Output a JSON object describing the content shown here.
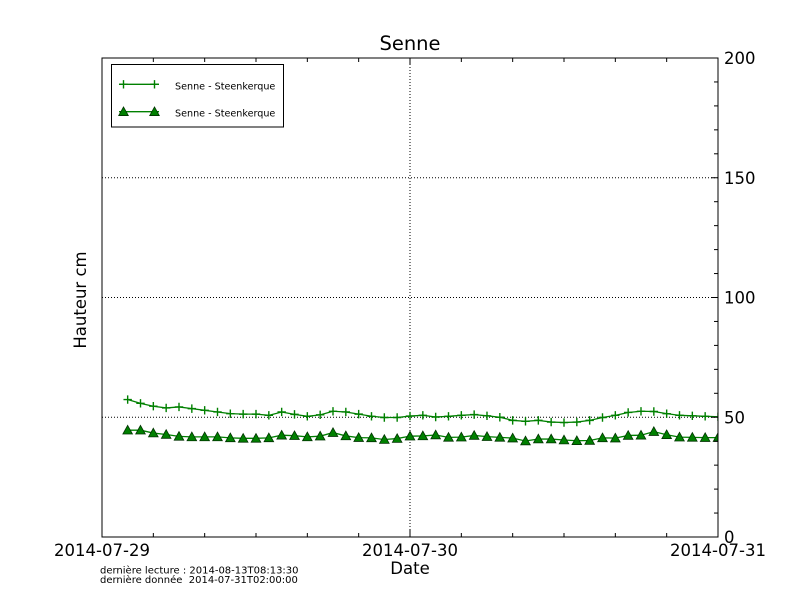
{
  "title": "Senne",
  "xlabel": "Date",
  "ylabel": "Hauteur cm",
  "footer": {
    "line1": "dernière lecture : 2014-08-13T08:13:30",
    "line2": "dernière donnée  2014-07-31T02:00:00"
  },
  "colors": {
    "line": "#008000",
    "triangle_fill": "#008000",
    "triangle_edge": "#003300",
    "grid": "#000000",
    "frame": "#000000"
  },
  "legend": {
    "entries": [
      {
        "label": "Senne - Steenkerque",
        "marker": "plus"
      },
      {
        "label": "Senne - Steenkerque",
        "marker": "triangle"
      }
    ]
  },
  "chart_data": {
    "type": "line",
    "title": "Senne",
    "xlabel": "Date",
    "ylabel": "Hauteur cm",
    "xlim_hours": [
      0,
      48
    ],
    "ylim": [
      0,
      200
    ],
    "x_tick_positions_hours": [
      0,
      24,
      48
    ],
    "x_tick_labels": [
      "2014-07-29",
      "2014-07-30",
      "2014-07-31"
    ],
    "y_tick_positions": [
      0,
      50,
      100,
      150,
      200
    ],
    "y_tick_labels": [
      "0",
      "50",
      "100",
      "150",
      "200"
    ],
    "x_minor_step_hours": 4,
    "y_minor_step": 10,
    "grid_y_values": [
      50,
      100,
      150
    ],
    "grid_x_values_hours": [
      24
    ],
    "series": [
      {
        "name": "Senne - Steenkerque",
        "marker": "plus",
        "x_hours": [
          2,
          3,
          4,
          5,
          6,
          7,
          8,
          9,
          10,
          11,
          12,
          13,
          14,
          15,
          16,
          17,
          18,
          19,
          20,
          21,
          22,
          23,
          24,
          25,
          26,
          27,
          28,
          29,
          30,
          31,
          32,
          33,
          34,
          35,
          36,
          37,
          38,
          39,
          40,
          41,
          42,
          43,
          44,
          45,
          46,
          47,
          48
        ],
        "values": [
          57.4,
          55.8,
          54.6,
          53.9,
          54.3,
          53.6,
          52.9,
          52.2,
          51.5,
          51.3,
          51.3,
          50.8,
          52.2,
          51.2,
          50.4,
          51.0,
          52.5,
          52.2,
          51.3,
          50.4,
          49.9,
          49.9,
          50.5,
          50.8,
          50.1,
          50.4,
          50.8,
          51.1,
          50.6,
          50.0,
          48.7,
          48.3,
          48.7,
          48.0,
          47.8,
          48.0,
          48.7,
          49.9,
          50.8,
          52.0,
          52.5,
          52.4,
          51.5,
          50.8,
          50.6,
          50.4,
          50.2
        ]
      },
      {
        "name": "Senne - Steenkerque",
        "marker": "triangle",
        "x_hours": [
          2,
          3,
          4,
          5,
          6,
          7,
          8,
          9,
          10,
          11,
          12,
          13,
          14,
          15,
          16,
          17,
          18,
          19,
          20,
          21,
          22,
          23,
          24,
          25,
          26,
          27,
          28,
          29,
          30,
          31,
          32,
          33,
          34,
          35,
          36,
          37,
          38,
          39,
          40,
          41,
          42,
          43,
          44,
          45,
          46,
          47,
          48
        ],
        "values": [
          44.6,
          44.6,
          43.4,
          42.8,
          42.0,
          41.8,
          41.8,
          41.8,
          41.4,
          41.2,
          41.2,
          41.4,
          42.5,
          42.3,
          41.8,
          42.1,
          43.6,
          42.2,
          41.5,
          41.4,
          40.7,
          41.1,
          42.1,
          42.2,
          42.6,
          41.6,
          41.7,
          42.4,
          41.9,
          41.6,
          41.3,
          40.1,
          40.9,
          40.9,
          40.5,
          40.2,
          40.3,
          41.4,
          41.3,
          42.4,
          42.5,
          44.0,
          42.7,
          41.7,
          41.6,
          41.5,
          41.5
        ]
      }
    ]
  }
}
